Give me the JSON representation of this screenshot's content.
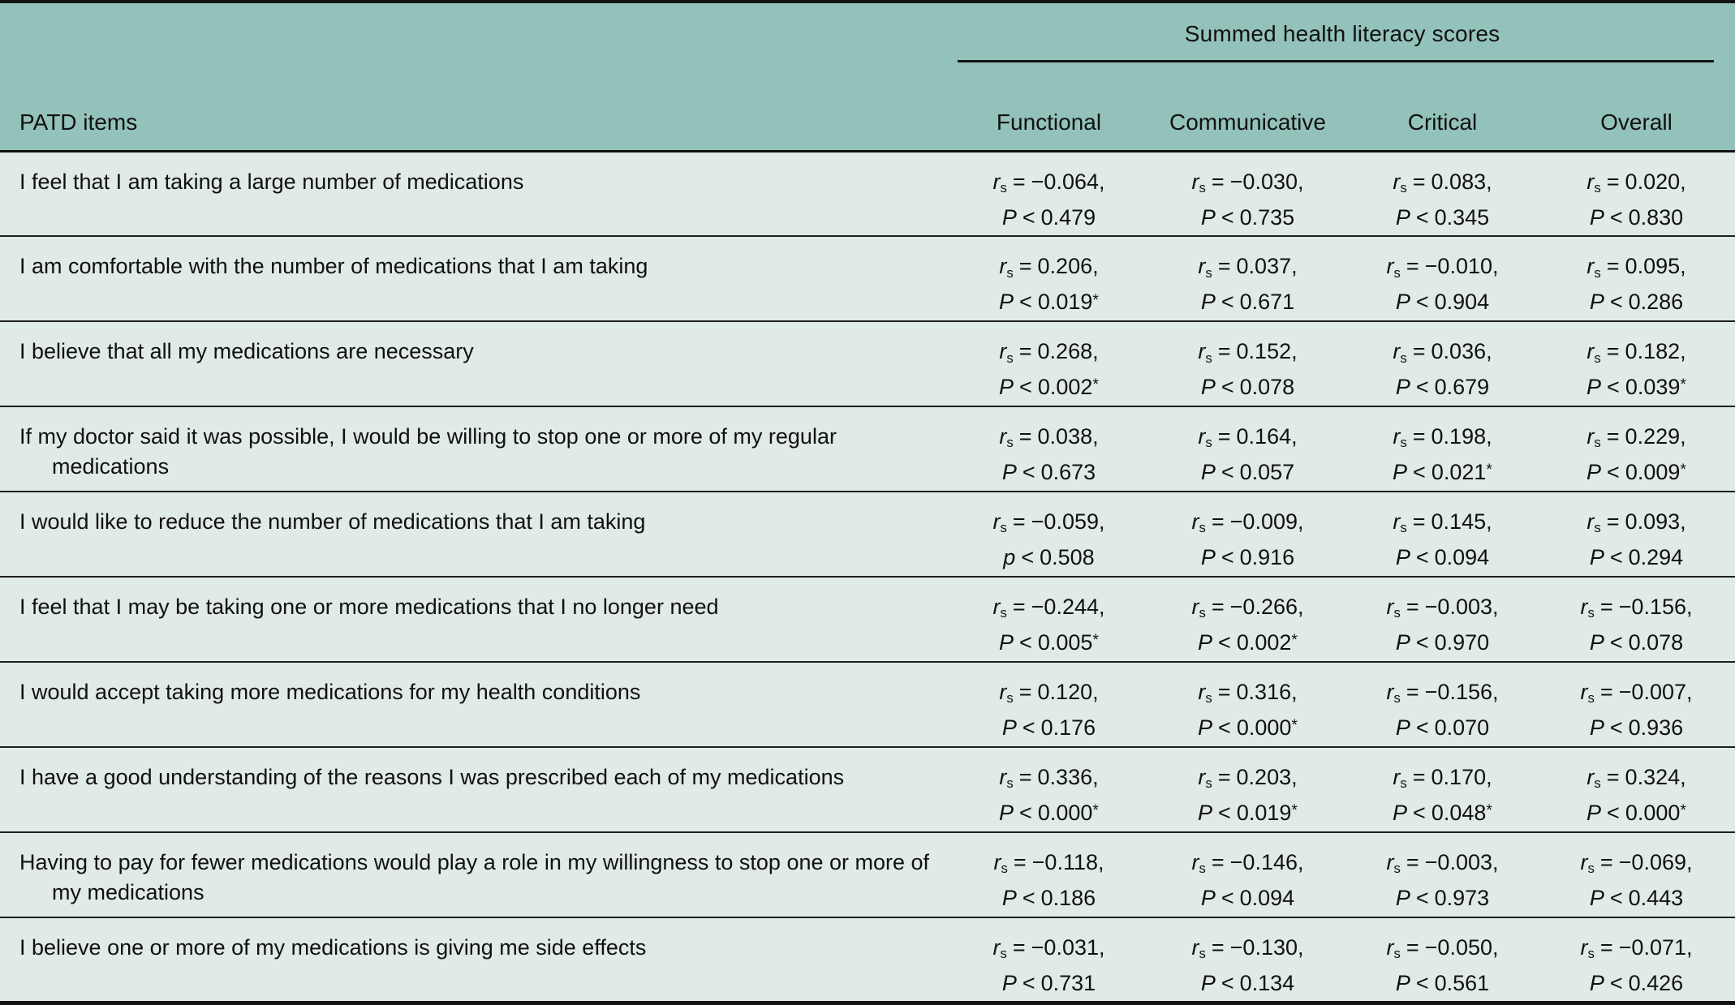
{
  "colors": {
    "header_bg": "#93c2ba",
    "body_bg": "#e0eae7",
    "rule": "#141414"
  },
  "table": {
    "item_header": "PATD items",
    "spanner": "Summed health literacy scores",
    "columns": [
      "Functional",
      "Communicative",
      "Critical",
      "Overall"
    ],
    "notation": {
      "r_symbol": "r",
      "r_subscript": "s",
      "equals": "=",
      "less_than": "<"
    },
    "rows": [
      {
        "item": "I feel that I am taking a large number of medications",
        "cells": [
          {
            "r": "−0.064,",
            "p_sym": "P",
            "p": "0.479",
            "star": ""
          },
          {
            "r": "−0.030,",
            "p_sym": "P",
            "p": "0.735",
            "star": ""
          },
          {
            "r": "0.083,",
            "p_sym": "P",
            "p": "0.345",
            "star": ""
          },
          {
            "r": "0.020,",
            "p_sym": "P",
            "p": "0.830",
            "star": ""
          }
        ]
      },
      {
        "item": "I am comfortable with the number of medications that I am taking",
        "cells": [
          {
            "r": "0.206,",
            "p_sym": "P",
            "p": "0.019",
            "star": "*"
          },
          {
            "r": "0.037,",
            "p_sym": "P",
            "p": "0.671",
            "star": ""
          },
          {
            "r": "−0.010,",
            "p_sym": "P",
            "p": "0.904",
            "star": ""
          },
          {
            "r": "0.095,",
            "p_sym": "P",
            "p": "0.286",
            "star": ""
          }
        ]
      },
      {
        "item": "I believe that all my medications are necessary",
        "cells": [
          {
            "r": "0.268,",
            "p_sym": "P",
            "p": "0.002",
            "star": "*"
          },
          {
            "r": "0.152,",
            "p_sym": "P",
            "p": "0.078",
            "star": ""
          },
          {
            "r": "0.036,",
            "p_sym": "P",
            "p": "0.679",
            "star": ""
          },
          {
            "r": "0.182,",
            "p_sym": "P",
            "p": "0.039",
            "star": "*"
          }
        ]
      },
      {
        "item": "If my doctor said it was possible, I would be willing to stop one or more of my regular medications",
        "cells": [
          {
            "r": "0.038,",
            "p_sym": "P",
            "p": "0.673",
            "star": ""
          },
          {
            "r": "0.164,",
            "p_sym": "P",
            "p": "0.057",
            "star": ""
          },
          {
            "r": "0.198,",
            "p_sym": "P",
            "p": "0.021",
            "star": "*"
          },
          {
            "r": "0.229,",
            "p_sym": "P",
            "p": "0.009",
            "star": "*"
          }
        ]
      },
      {
        "item": "I would like to reduce the number of medications that I am taking",
        "cells": [
          {
            "r": "−0.059,",
            "p_sym": "p",
            "p": "0.508",
            "star": ""
          },
          {
            "r": "−0.009,",
            "p_sym": "P",
            "p": "0.916",
            "star": ""
          },
          {
            "r": "0.145,",
            "p_sym": "P",
            "p": "0.094",
            "star": ""
          },
          {
            "r": "0.093,",
            "p_sym": "P",
            "p": "0.294",
            "star": ""
          }
        ]
      },
      {
        "item": "I feel that I may be taking one or more medications that I no longer need",
        "cells": [
          {
            "r": "−0.244,",
            "p_sym": "P",
            "p": "0.005",
            "star": "*"
          },
          {
            "r": "−0.266,",
            "p_sym": "P",
            "p": "0.002",
            "star": "*"
          },
          {
            "r": "−0.003,",
            "p_sym": "P",
            "p": "0.970",
            "star": ""
          },
          {
            "r": "−0.156,",
            "p_sym": "P",
            "p": "0.078",
            "star": ""
          }
        ]
      },
      {
        "item": "I would accept taking more medications for my health conditions",
        "cells": [
          {
            "r": "0.120,",
            "p_sym": "P",
            "p": "0.176",
            "star": ""
          },
          {
            "r": "0.316,",
            "p_sym": "P",
            "p": "0.000",
            "star": "*"
          },
          {
            "r": "−0.156,",
            "p_sym": "P",
            "p": "0.070",
            "star": ""
          },
          {
            "r": "−0.007,",
            "p_sym": "P",
            "p": "0.936",
            "star": ""
          }
        ]
      },
      {
        "item": "I have a good understanding of the reasons I was prescribed each of my medications",
        "cells": [
          {
            "r": "0.336,",
            "p_sym": "P",
            "p": "0.000",
            "star": "*"
          },
          {
            "r": "0.203,",
            "p_sym": "P",
            "p": "0.019",
            "star": "*"
          },
          {
            "r": "0.170,",
            "p_sym": "P",
            "p": "0.048",
            "star": "*"
          },
          {
            "r": "0.324,",
            "p_sym": "P",
            "p": "0.000",
            "star": "*"
          }
        ]
      },
      {
        "item": "Having to pay for fewer medications would play a role in my willingness to stop one or more of my medications",
        "cells": [
          {
            "r": "−0.118,",
            "p_sym": "P",
            "p": "0.186",
            "star": ""
          },
          {
            "r": "−0.146,",
            "p_sym": "P",
            "p": "0.094",
            "star": ""
          },
          {
            "r": "−0.003,",
            "p_sym": "P",
            "p": "0.973",
            "star": ""
          },
          {
            "r": "−0.069,",
            "p_sym": "P",
            "p": "0.443",
            "star": ""
          }
        ]
      },
      {
        "item": "I believe one or more of my medications is giving me side effects",
        "cells": [
          {
            "r": "−0.031,",
            "p_sym": "P",
            "p": "0.731",
            "star": ""
          },
          {
            "r": "−0.130,",
            "p_sym": "P",
            "p": "0.134",
            "star": ""
          },
          {
            "r": "−0.050,",
            "p_sym": "P",
            "p": "0.561",
            "star": ""
          },
          {
            "r": "−0.071,",
            "p_sym": "P",
            "p": "0.426",
            "star": ""
          }
        ]
      }
    ]
  }
}
